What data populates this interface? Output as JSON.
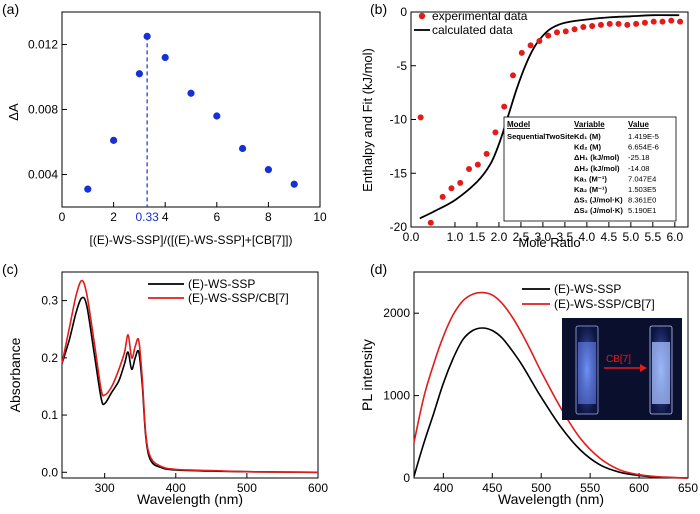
{
  "chart_data": [
    {
      "panel": "(a)",
      "type": "scatter",
      "ylabel": "ΔA",
      "xlabel": "[(E)-WS-SSP]/([(E)-WS-SSP]+[CB[7]])",
      "xlim": [
        0,
        10
      ],
      "ylim": [
        0.002,
        0.014
      ],
      "xticks": [
        "0",
        "2",
        "4",
        "6",
        "8",
        "10"
      ],
      "yticks": [
        "0.004",
        "0.008",
        "0.012"
      ],
      "annotation": "0.33",
      "marker_x": 3.3,
      "series": [
        {
          "x": [
            1,
            2,
            3,
            3.3,
            4,
            5,
            6,
            7,
            8,
            9
          ],
          "y": [
            0.0031,
            0.0061,
            0.0102,
            0.0125,
            0.0112,
            0.009,
            0.0076,
            0.0056,
            0.0043,
            0.0034
          ]
        }
      ],
      "color": "#1530d6"
    },
    {
      "panel": "(b)",
      "type": "scatter",
      "ylabel": "Enthalpy and Fit (kJ/mol)",
      "xlabel": "Mole Ratio",
      "xlim": [
        0,
        6.3
      ],
      "ylim": [
        -20,
        0
      ],
      "xticks": [
        "0.0",
        "1.0",
        "1.5",
        "2.0",
        "2.5",
        "3.0",
        "3.5",
        "4.0",
        "4.5",
        "5.0",
        "5.5",
        "6.0"
      ],
      "yticks": [
        "0",
        "-5",
        "-10",
        "-15",
        "-20"
      ],
      "legend": [
        "experimental data",
        "calculated data"
      ],
      "series": [
        {
          "name": "experimental data",
          "x": [
            0.22,
            0.45,
            0.72,
            0.92,
            1.12,
            1.32,
            1.52,
            1.72,
            1.92,
            2.12,
            2.32,
            2.52,
            2.72,
            2.92,
            3.12,
            3.32,
            3.52,
            3.72,
            3.92,
            4.12,
            4.32,
            4.52,
            4.72,
            4.92,
            5.12,
            5.32,
            5.52,
            5.72,
            5.92,
            6.12
          ],
          "y": [
            -9.8,
            -19.6,
            -17.2,
            -16.4,
            -15.9,
            -14.6,
            -14.2,
            -13.2,
            -11.2,
            -8.8,
            -5.9,
            -3.8,
            -3.1,
            -2.7,
            -2.2,
            -1.9,
            -1.8,
            -1.6,
            -1.4,
            -1.3,
            -1.2,
            -1.1,
            -1.1,
            -1.2,
            -1.1,
            -1.0,
            -0.9,
            -0.9,
            -0.8,
            -0.9
          ]
        },
        {
          "name": "calculated data",
          "x": [
            0.2,
            0.5,
            1.0,
            1.5,
            1.8,
            2.0,
            2.2,
            2.4,
            2.6,
            2.8,
            3.0,
            3.2,
            3.5,
            4.0,
            4.5,
            5.0,
            5.5,
            6.0,
            6.1
          ],
          "y": [
            -19.2,
            -18.6,
            -17.5,
            -15.8,
            -14.2,
            -12.3,
            -9.8,
            -7.2,
            -5.0,
            -3.3,
            -2.2,
            -1.5,
            -1.0,
            -0.7,
            -0.5,
            -0.4,
            -0.3,
            -0.3,
            -0.3
          ]
        }
      ],
      "colors": [
        "#e21b1b",
        "#000000"
      ],
      "table": {
        "headers": [
          "Model",
          "Variable",
          "Value"
        ],
        "rows": [
          [
            "SequentialTwoSite",
            "Kd₁ (M)",
            "1.419E-5"
          ],
          [
            "",
            "Kd₂ (M)",
            "6.654E-6"
          ],
          [
            "",
            "ΔH₁ (kJ/mol)",
            "-25.18"
          ],
          [
            "",
            "ΔH₂ (kJ/mol)",
            "-14.08"
          ],
          [
            "",
            "Ka₁ (M⁻¹)",
            "7.047E4"
          ],
          [
            "",
            "Ka₂ (M⁻¹)",
            "1.503E5"
          ],
          [
            "",
            "ΔS₁ (J/mol·K)",
            "8.361E0"
          ],
          [
            "",
            "ΔS₂ (J/mol·K)",
            "5.190E1"
          ]
        ]
      }
    },
    {
      "panel": "(c)",
      "type": "line",
      "ylabel": "Absorbance",
      "xlabel": "Wavelength (nm)",
      "xlim": [
        240,
        600
      ],
      "ylim": [
        -0.01,
        0.35
      ],
      "xticks": [
        "300",
        "400",
        "500",
        "600"
      ],
      "yticks": [
        "0.0",
        "0.1",
        "0.2",
        "0.3"
      ],
      "legend": [
        "(E)-WS-SSP",
        "(E)-WS-SSP/CB[7]"
      ],
      "series": [
        {
          "name": "(E)-WS-SSP",
          "x": [
            240,
            250,
            260,
            268,
            275,
            285,
            295,
            300,
            310,
            320,
            328,
            333,
            338,
            343,
            348,
            353,
            358,
            365,
            380,
            400,
            450,
            500,
            600
          ],
          "y": [
            0.19,
            0.23,
            0.28,
            0.305,
            0.29,
            0.21,
            0.13,
            0.12,
            0.14,
            0.16,
            0.19,
            0.21,
            0.18,
            0.2,
            0.21,
            0.15,
            0.06,
            0.02,
            0.008,
            0.004,
            0.002,
            0.001,
            0.0
          ]
        },
        {
          "name": "(E)-WS-SSP/CB[7]",
          "x": [
            240,
            250,
            260,
            268,
            275,
            285,
            295,
            300,
            310,
            320,
            328,
            333,
            338,
            343,
            348,
            353,
            358,
            365,
            380,
            400,
            450,
            500,
            600
          ],
          "y": [
            0.19,
            0.25,
            0.31,
            0.335,
            0.31,
            0.23,
            0.145,
            0.135,
            0.15,
            0.18,
            0.21,
            0.24,
            0.2,
            0.22,
            0.23,
            0.16,
            0.065,
            0.025,
            0.01,
            0.005,
            0.003,
            0.001,
            0.0
          ]
        }
      ],
      "colors": [
        "#000000",
        "#e21b1b"
      ]
    },
    {
      "panel": "(d)",
      "type": "line",
      "ylabel": "PL intensity",
      "xlabel": "Wavelength (nm)",
      "xlim": [
        370,
        650
      ],
      "ylim": [
        0,
        2500
      ],
      "xticks": [
        "400",
        "450",
        "500",
        "550",
        "600",
        "650"
      ],
      "yticks": [
        "0",
        "1000",
        "2000"
      ],
      "legend": [
        "(E)-WS-SSP",
        "(E)-WS-SSP/CB[7]"
      ],
      "inset_label": "CB[7]",
      "series": [
        {
          "name": "(E)-WS-SSP",
          "x": [
            370,
            380,
            390,
            400,
            410,
            420,
            430,
            440,
            450,
            460,
            470,
            480,
            490,
            500,
            520,
            540,
            560,
            580,
            600,
            620,
            650
          ],
          "y": [
            20,
            420,
            780,
            1150,
            1450,
            1680,
            1790,
            1820,
            1790,
            1700,
            1550,
            1380,
            1180,
            980,
            620,
            340,
            160,
            70,
            30,
            10,
            0
          ]
        },
        {
          "name": "(E)-WS-SSP/CB[7]",
          "x": [
            370,
            380,
            390,
            400,
            410,
            420,
            430,
            440,
            450,
            460,
            470,
            480,
            490,
            500,
            520,
            540,
            560,
            580,
            600,
            620,
            650
          ],
          "y": [
            430,
            980,
            1380,
            1720,
            1980,
            2150,
            2230,
            2250,
            2220,
            2120,
            1960,
            1760,
            1530,
            1290,
            850,
            480,
            240,
            100,
            40,
            15,
            0
          ]
        }
      ],
      "colors": [
        "#000000",
        "#e21b1b"
      ]
    }
  ]
}
